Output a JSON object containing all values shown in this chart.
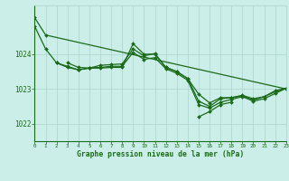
{
  "xlabel": "Graphe pression niveau de la mer (hPa)",
  "background_color": "#cceee8",
  "grid_color": "#aad4ce",
  "line_color": "#1a6b1a",
  "xlim": [
    0,
    23
  ],
  "ylim": [
    1021.5,
    1025.4
  ],
  "yticks": [
    1022,
    1023,
    1024
  ],
  "xticks": [
    0,
    1,
    2,
    3,
    4,
    5,
    6,
    7,
    8,
    9,
    10,
    11,
    12,
    13,
    14,
    15,
    16,
    17,
    18,
    19,
    20,
    21,
    22,
    23
  ],
  "series": [
    [
      1025.05,
      1024.55,
      null,
      null,
      null,
      null,
      null,
      null,
      null,
      null,
      null,
      null,
      null,
      null,
      null,
      null,
      null,
      null,
      null,
      null,
      null,
      null,
      null,
      1023.0
    ],
    [
      1024.8,
      1024.15,
      1023.75,
      1023.65,
      1023.55,
      1023.6,
      1023.6,
      1023.62,
      1023.62,
      1024.3,
      1024.0,
      1024.0,
      1023.62,
      1023.5,
      1023.3,
      1022.85,
      1022.6,
      1022.75,
      1022.75,
      1022.8,
      1022.68,
      1022.78,
      1022.95,
      1023.02
    ],
    [
      null,
      null,
      1023.75,
      1023.62,
      1023.55,
      1023.6,
      1023.62,
      1023.65,
      1023.65,
      1024.05,
      1023.85,
      1023.9,
      1023.58,
      1023.45,
      1023.25,
      1022.55,
      1022.45,
      1022.62,
      1022.7,
      1022.78,
      1022.65,
      1022.72,
      1022.87,
      1023.02
    ],
    [
      null,
      null,
      null,
      1023.75,
      1023.62,
      1023.6,
      1023.68,
      1023.7,
      1023.72,
      1024.15,
      1023.95,
      1024.02,
      1023.62,
      1023.5,
      1023.3,
      1022.65,
      1022.5,
      1022.72,
      1022.75,
      1022.82,
      1022.72,
      1022.78,
      1022.92,
      1023.02
    ],
    [
      null,
      null,
      null,
      null,
      null,
      null,
      null,
      null,
      null,
      null,
      null,
      null,
      null,
      null,
      null,
      1022.2,
      1022.35,
      1022.55,
      1022.62,
      null,
      null,
      null,
      null,
      null
    ]
  ]
}
